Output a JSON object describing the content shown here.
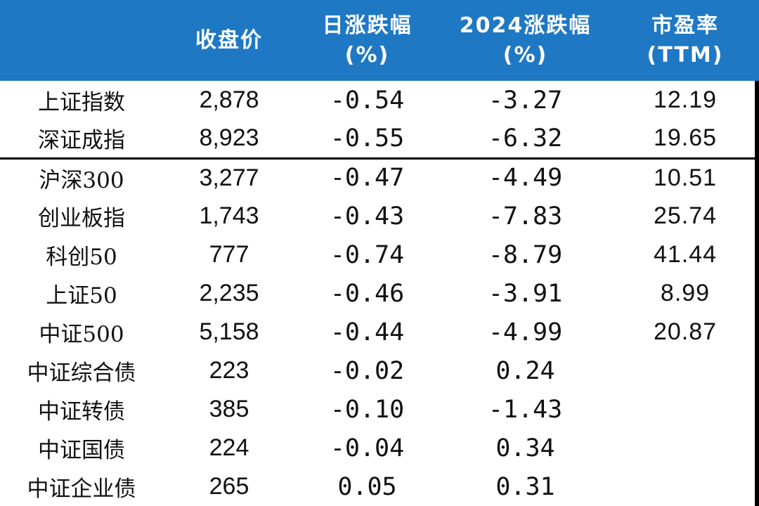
{
  "header": {
    "name_col": "",
    "close_col": "收盘价",
    "daily_chg_col": "日涨跌幅\n(%)",
    "ytd_chg_col": "2024涨跌幅\n(%)",
    "pe_col": "市盈率\n(TTM)"
  },
  "rows": [
    {
      "name": "上证指数",
      "close": "2,878",
      "daily": "-0.54",
      "ytd": "-3.27",
      "pe": "12.19"
    },
    {
      "name": "深证成指",
      "close": "8,923",
      "daily": "-0.55",
      "ytd": "-6.32",
      "pe": "19.65"
    },
    {
      "name": "沪深300",
      "close": "3,277",
      "daily": "-0.47",
      "ytd": "-4.49",
      "pe": "10.51"
    },
    {
      "name": "创业板指",
      "close": "1,743",
      "daily": "-0.43",
      "ytd": "-7.83",
      "pe": "25.74"
    },
    {
      "name": "科创50",
      "close": "777",
      "daily": "-0.74",
      "ytd": "-8.79",
      "pe": "41.44"
    },
    {
      "name": "上证50",
      "close": "2,235",
      "daily": "-0.46",
      "ytd": "-3.91",
      "pe": "8.99"
    },
    {
      "name": "中证500",
      "close": "5,158",
      "daily": "-0.44",
      "ytd": "-4.99",
      "pe": "20.87"
    },
    {
      "name": "中证综合债",
      "close": "223",
      "daily": "-0.02",
      "ytd": "0.24",
      "pe": ""
    },
    {
      "name": "中证转债",
      "close": "385",
      "daily": "-0.10",
      "ytd": "-1.43",
      "pe": ""
    },
    {
      "name": "中证国债",
      "close": "224",
      "daily": "-0.04",
      "ytd": "0.34",
      "pe": ""
    },
    {
      "name": "中证企业债",
      "close": "265",
      "daily": "0.05",
      "ytd": "0.31",
      "pe": ""
    }
  ],
  "colors": {
    "header_bg": "#1f78c4",
    "negative": "#229d1f",
    "positive": "#e61414"
  }
}
